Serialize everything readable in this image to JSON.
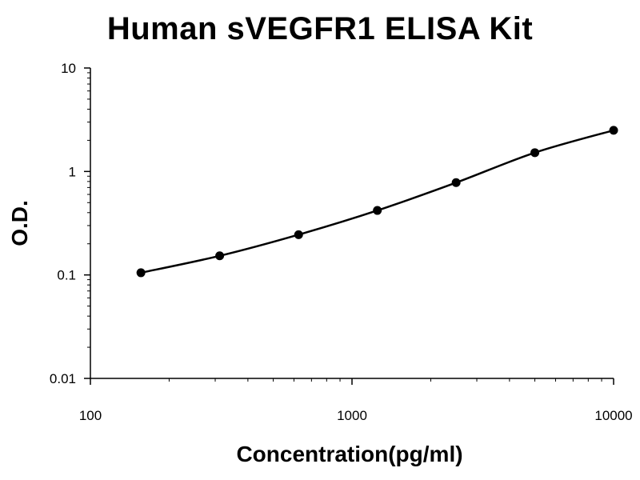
{
  "chart_data": {
    "type": "scatter",
    "title": "Human sVEGFR1 ELISA Kit",
    "xlabel": "Concentration(pg/ml)",
    "ylabel": "O.D.",
    "x_scale": "log",
    "y_scale": "log",
    "xlim": [
      100,
      10000
    ],
    "ylim": [
      0.01,
      10
    ],
    "x_ticks": [
      "100",
      "1000",
      "10000"
    ],
    "y_ticks": [
      "0.01",
      "0.1",
      "1",
      "10"
    ],
    "grid": false,
    "legend": "none",
    "series": [
      {
        "points": [
          {
            "x": 156,
            "y": 0.105
          },
          {
            "x": 312,
            "y": 0.153
          },
          {
            "x": 625,
            "y": 0.245
          },
          {
            "x": 1250,
            "y": 0.42
          },
          {
            "x": 2500,
            "y": 0.78
          },
          {
            "x": 5000,
            "y": 1.52
          },
          {
            "x": 10000,
            "y": 2.5
          }
        ],
        "fit_line": true
      }
    ],
    "colors": {
      "line": "#000000",
      "marker": "#000000",
      "axis": "#000000"
    }
  }
}
